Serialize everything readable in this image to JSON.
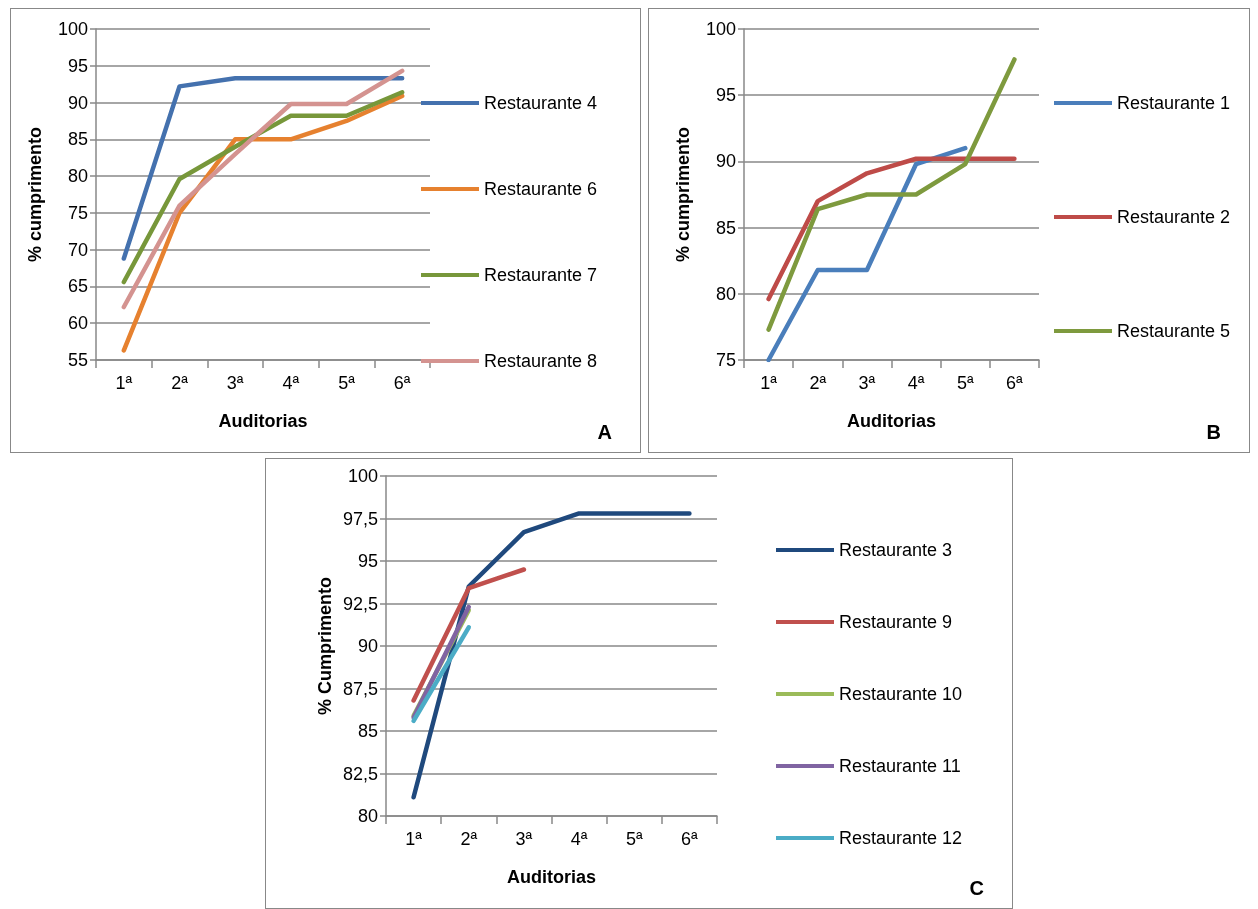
{
  "chart_data": [
    {
      "type": "line",
      "xlabel": "Auditorias",
      "ylabel": "% cumprimento",
      "categories": [
        "1ª",
        "2ª",
        "3ª",
        "4ª",
        "5ª",
        "6ª"
      ],
      "ylim": [
        55,
        100
      ],
      "yticks": [
        55,
        60,
        65,
        70,
        75,
        80,
        85,
        90,
        95,
        100
      ],
      "grid": "y",
      "legend": "right",
      "marker": "none",
      "annotations": [
        "A"
      ],
      "series": [
        {
          "name": "Restaurante 4",
          "color": "#4471ae",
          "values": [
            68.8,
            92.2,
            93.3,
            93.3,
            93.3,
            93.3
          ]
        },
        {
          "name": "Restaurante 6",
          "color": "#e6812f",
          "values": [
            56.3,
            75,
            85,
            85,
            87.5,
            90.9
          ]
        },
        {
          "name": "Restaurante 7",
          "color": "#77973a",
          "values": [
            65.6,
            79.6,
            84,
            88.2,
            88.2,
            91.4
          ]
        },
        {
          "name": "Restaurante 8",
          "color": "#d49390",
          "values": [
            62.2,
            76,
            83,
            89.8,
            89.8,
            94.3
          ]
        }
      ]
    },
    {
      "type": "line",
      "xlabel": "Auditorias",
      "ylabel": "% cumprimento",
      "categories": [
        "1ª",
        "2ª",
        "3ª",
        "4ª",
        "5ª",
        "6ª"
      ],
      "ylim": [
        75,
        100
      ],
      "yticks": [
        75,
        80,
        85,
        90,
        95,
        100
      ],
      "grid": "y",
      "legend": "right",
      "marker": "none",
      "annotations": [
        "B"
      ],
      "series": [
        {
          "name": "Restaurante 1",
          "color": "#4a7ebb",
          "values": [
            75,
            81.8,
            81.8,
            89.8,
            91,
            null
          ]
        },
        {
          "name": "Restaurante 2",
          "color": "#be4b48",
          "values": [
            79.6,
            87,
            89.1,
            90.2,
            90.2,
            90.2
          ]
        },
        {
          "name": "Restaurante 5",
          "color": "#7e9a3e",
          "values": [
            77.3,
            86.4,
            87.5,
            87.5,
            89.8,
            97.7
          ]
        }
      ]
    },
    {
      "type": "line",
      "xlabel": "Auditorias",
      "ylabel": "% Cumprimento",
      "categories": [
        "1ª",
        "2ª",
        "3ª",
        "4ª",
        "5ª",
        "6ª"
      ],
      "ylim": [
        80,
        100
      ],
      "yticks": [
        80,
        {
          "value": 82.5,
          "label": "82,5"
        },
        85,
        {
          "value": 87.5,
          "label": "87,5"
        },
        90,
        {
          "value": 92.5,
          "label": "92,5"
        },
        95,
        {
          "value": 97.5,
          "label": "97,5"
        },
        100
      ],
      "grid": "y",
      "legend": "right",
      "marker": "none",
      "annotations": [
        "C"
      ],
      "series": [
        {
          "name": "Restaurante 3",
          "color": "#1f497d",
          "values": [
            81.1,
            93.5,
            96.7,
            97.8,
            97.8,
            97.8
          ]
        },
        {
          "name": "Restaurante 9",
          "color": "#c0504d",
          "values": [
            86.8,
            93.4,
            94.5,
            null,
            null,
            null
          ]
        },
        {
          "name": "Restaurante 10",
          "color": "#9bbb59",
          "values": [
            85.9,
            92.1,
            null,
            null,
            null,
            null
          ]
        },
        {
          "name": "Restaurante 11",
          "color": "#8064a2",
          "values": [
            85.8,
            92.3,
            null,
            null,
            null,
            null
          ]
        },
        {
          "name": "Restaurante 12",
          "color": "#4bacc6",
          "values": [
            85.6,
            91.1,
            null,
            null,
            null,
            null
          ]
        }
      ]
    }
  ]
}
